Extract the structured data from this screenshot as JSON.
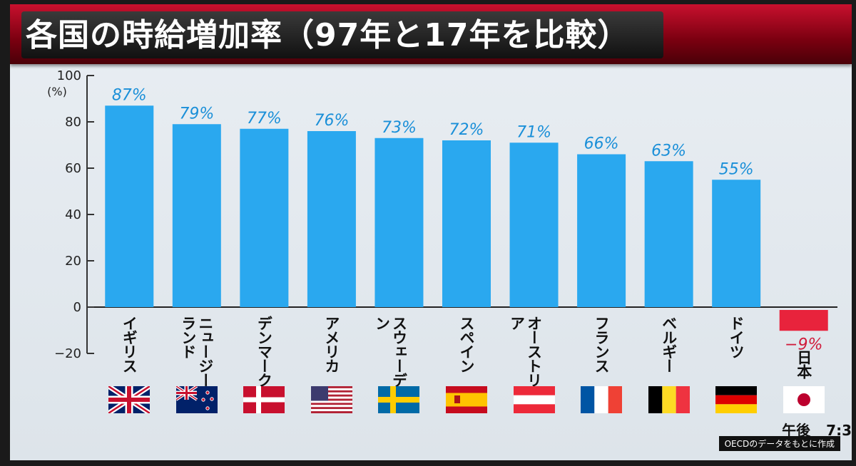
{
  "title": "各国の時給増加率（97年と17年を比較）",
  "source_note": "OECDのデータをもとに作成",
  "clock": {
    "period": "午後",
    "time": "7:3"
  },
  "colors": {
    "positive_bar": "#2aa8ef",
    "negative_bar": "#e8233c",
    "positive_label": "#1a8fd8",
    "negative_label": "#d01a3a"
  },
  "chart_data": {
    "type": "bar",
    "title": "各国の時給増加率（97年と17年を比較）",
    "ylabel": "(%)",
    "ylim": [
      -20,
      100
    ],
    "yticks": [
      100,
      80,
      60,
      40,
      20,
      0,
      -20
    ],
    "categories": [
      "イギリス",
      "ニュージーランド",
      "デンマーク",
      "アメリカ",
      "スウェーデン",
      "スペイン",
      "オーストリア",
      "フランス",
      "ベルギー",
      "ドイツ",
      "日本"
    ],
    "category_lines": [
      [
        "イギリス"
      ],
      [
        "ニュージー",
        "ランド"
      ],
      [
        "デンマーク"
      ],
      [
        "アメリカ"
      ],
      [
        "スウェーデン"
      ],
      [
        "スペイン"
      ],
      [
        "オーストリア"
      ],
      [
        "フランス"
      ],
      [
        "ベルギー"
      ],
      [
        "ドイツ"
      ],
      [
        "日本"
      ]
    ],
    "values": [
      87,
      79,
      77,
      76,
      73,
      72,
      71,
      66,
      63,
      55,
      -9
    ],
    "value_labels": [
      "87%",
      "79%",
      "77%",
      "76%",
      "73%",
      "72%",
      "71%",
      "66%",
      "63%",
      "55%",
      "−9%"
    ],
    "flags": [
      "uk-flag-icon",
      "new-zealand-flag-icon",
      "denmark-flag-icon",
      "usa-flag-icon",
      "sweden-flag-icon",
      "spain-flag-icon",
      "austria-flag-icon",
      "france-flag-icon",
      "belgium-flag-icon",
      "germany-flag-icon",
      "japan-flag-icon"
    ],
    "grid": false,
    "legend": "none"
  }
}
